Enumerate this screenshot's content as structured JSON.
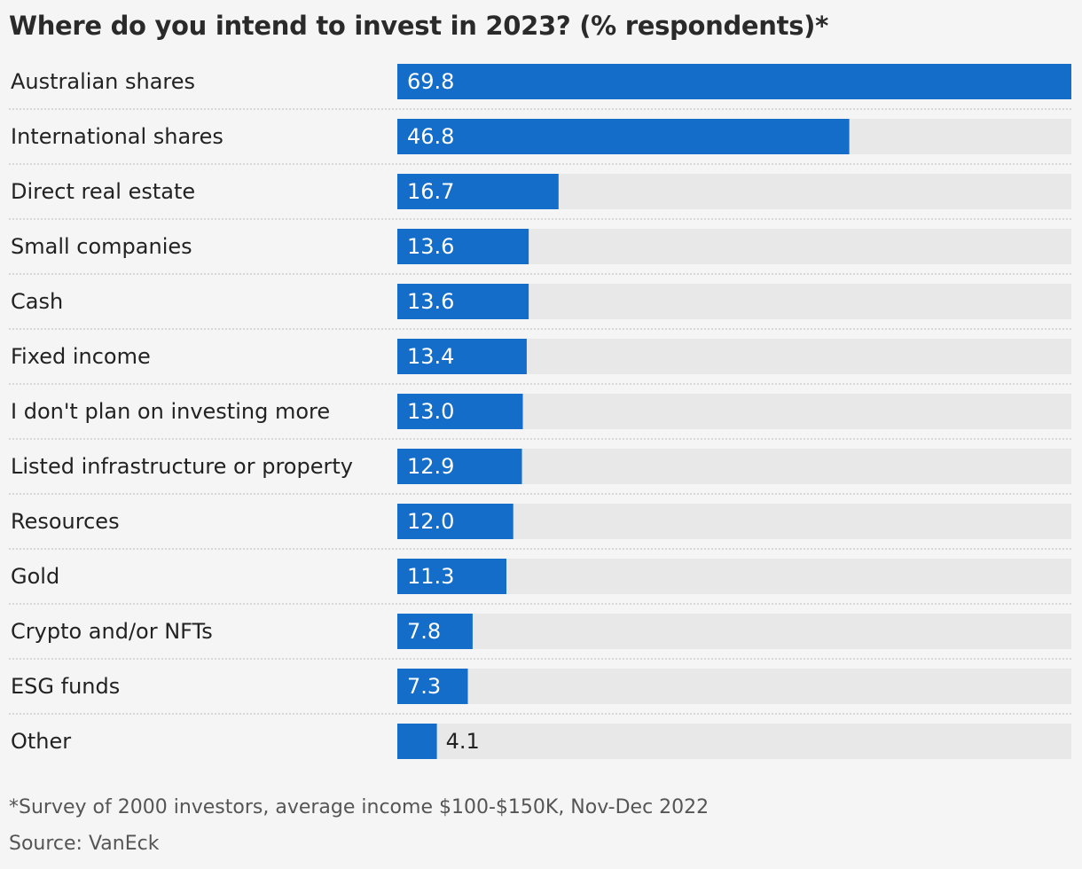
{
  "chart_data": {
    "type": "bar",
    "orientation": "horizontal",
    "title": "Where do you intend to invest in 2023? (% respondents)*",
    "categories": [
      "Australian shares",
      "International shares",
      "Direct real estate",
      "Small companies",
      "Cash",
      "Fixed income",
      "I don't plan on investing more",
      "Listed infrastructure or property",
      "Resources",
      "Gold",
      "Crypto and/or NFTs",
      "ESG funds",
      "Other"
    ],
    "values": [
      69.8,
      46.8,
      16.7,
      13.6,
      13.6,
      13.4,
      13.0,
      12.9,
      12.0,
      11.3,
      7.8,
      7.3,
      4.1
    ],
    "value_labels": [
      "69.8",
      "46.8",
      "16.7",
      "13.6",
      "13.6",
      "13.4",
      "13.0",
      "12.9",
      "12.0",
      "11.3",
      "7.8",
      "7.3",
      "4.1"
    ],
    "xlim": [
      0,
      69.8
    ],
    "grid": false,
    "legend": "none",
    "footnote": "*Survey of 2000 investors, average income $100-$150K, Nov-Dec 2022",
    "source": "Source: VanEck"
  },
  "colors": {
    "bar": "#136dc9",
    "track": "#e8e8e8",
    "background": "#f5f5f5",
    "separator": "#c8c8c8"
  }
}
